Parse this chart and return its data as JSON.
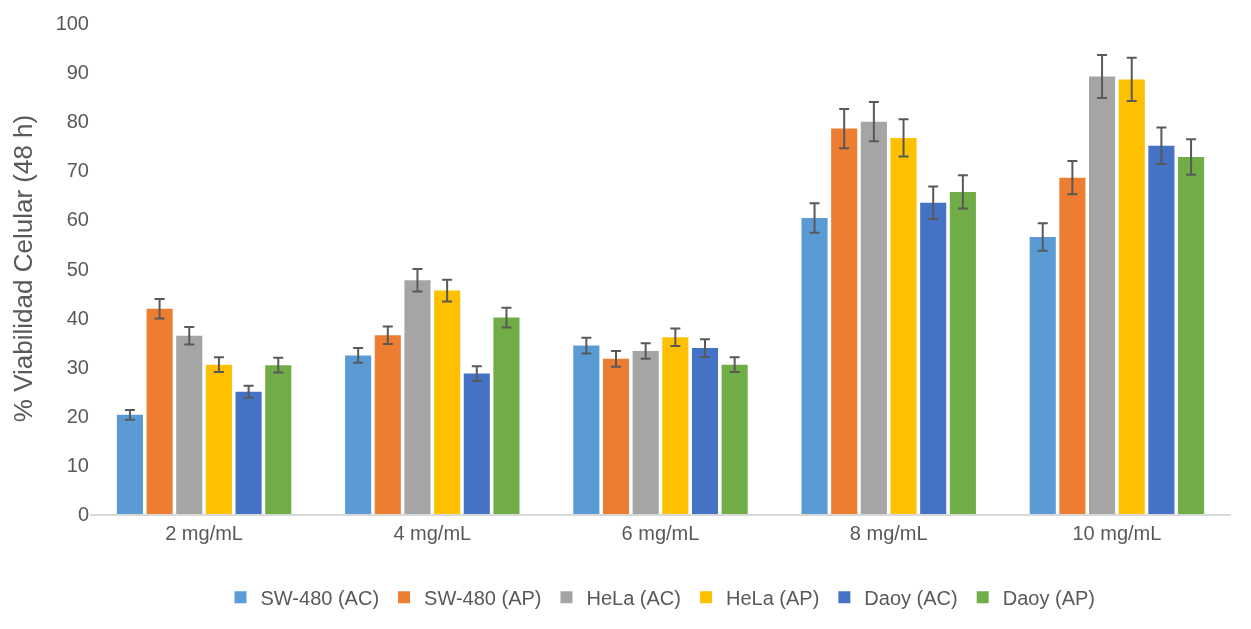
{
  "chart_data": {
    "type": "bar",
    "ylabel": "% Viabilidad Celular (48 h)",
    "categories": [
      "2 mg/mL",
      "4 mg/mL",
      "6 mg/mL",
      "8 mg/mL",
      "10 mg/mL"
    ],
    "series": [
      {
        "name": "SW-480 (AC)",
        "color": "#5b9bd5",
        "values": [
          20.2,
          32.3,
          34.3,
          60.3,
          56.4
        ],
        "errors": [
          1.0,
          1.5,
          1.6,
          3.0,
          2.8
        ]
      },
      {
        "name": "SW-480 (AP)",
        "color": "#ed7d31",
        "values": [
          41.8,
          36.4,
          31.6,
          78.5,
          68.5
        ],
        "errors": [
          2.0,
          1.8,
          1.6,
          4.0,
          3.4
        ]
      },
      {
        "name": "HeLa (AC)",
        "color": "#a5a5a5",
        "values": [
          36.3,
          47.6,
          33.2,
          79.9,
          89.1
        ],
        "errors": [
          1.8,
          2.3,
          1.6,
          4.0,
          4.4
        ]
      },
      {
        "name": "HeLa (AP)",
        "color": "#ffc000",
        "values": [
          30.4,
          45.5,
          36.0,
          76.6,
          88.5
        ],
        "errors": [
          1.5,
          2.2,
          1.8,
          3.8,
          4.4
        ]
      },
      {
        "name": "Daoy (AC)",
        "color": "#4472c4",
        "values": [
          24.9,
          28.6,
          33.8,
          63.4,
          75.0
        ],
        "errors": [
          1.2,
          1.5,
          1.8,
          3.3,
          3.7
        ]
      },
      {
        "name": "Daoy (AP)",
        "color": "#70ad47",
        "values": [
          30.3,
          40.0,
          30.4,
          65.6,
          72.7
        ],
        "errors": [
          1.5,
          2.0,
          1.5,
          3.4,
          3.6
        ]
      }
    ],
    "ylim": [
      0,
      100
    ],
    "yticks": [
      0,
      10,
      20,
      30,
      40,
      50,
      60,
      70,
      80,
      90,
      100
    ],
    "grid": false,
    "legend": "bottom"
  }
}
